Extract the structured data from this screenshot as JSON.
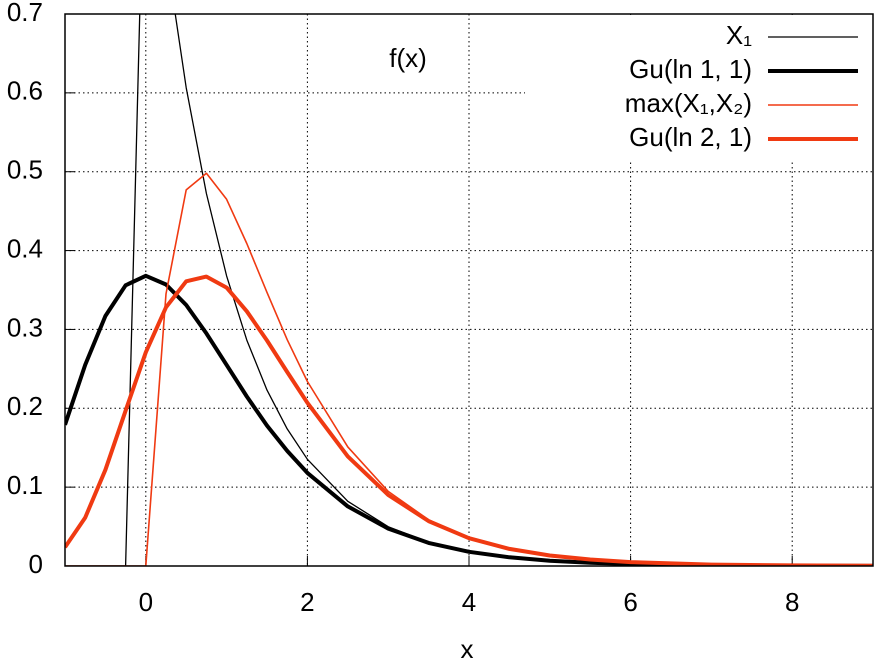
{
  "chart_data": {
    "type": "line",
    "ylabel": "f(x)",
    "xlabel": "x",
    "x": [
      -1,
      -0.75,
      -0.5,
      -0.25,
      0,
      0.25,
      0.5,
      0.75,
      1,
      1.25,
      1.5,
      1.75,
      2,
      2.5,
      3,
      3.5,
      4,
      4.5,
      5,
      5.5,
      6,
      7,
      8,
      9
    ],
    "series": [
      {
        "name": "X₁",
        "color": "#000000",
        "line_width": 1.3,
        "values": [
          0,
          0,
          0,
          0,
          1,
          0.7788,
          0.6065,
          0.4724,
          0.3679,
          0.2865,
          0.2231,
          0.1738,
          0.1353,
          0.0821,
          0.0498,
          0.0302,
          0.0183,
          0.0111,
          0.0067,
          0.0041,
          0.0025,
          0.0009,
          0.0003,
          0.0001
        ]
      },
      {
        "name": "Gu(ln 1, 1)",
        "color": "#000000",
        "line_width": 4,
        "values": [
          0.179,
          0.255,
          0.317,
          0.356,
          0.368,
          0.357,
          0.331,
          0.295,
          0.255,
          0.215,
          0.178,
          0.146,
          0.118,
          0.0756,
          0.0474,
          0.0293,
          0.018,
          0.011,
          0.0067,
          0.0041,
          0.0025,
          0.0009,
          0.0003,
          0.0001
        ]
      },
      {
        "name": "max(X₁,X₂)",
        "color": "#f03a12",
        "line_width": 1.6,
        "values": [
          0,
          0,
          0,
          0,
          0,
          0.345,
          0.477,
          0.498,
          0.465,
          0.409,
          0.347,
          0.287,
          0.234,
          0.151,
          0.0946,
          0.0586,
          0.0359,
          0.022,
          0.0134,
          0.0082,
          0.005,
          0.0018,
          0.0007,
          0.0002
        ]
      },
      {
        "name": "Gu(ln 2, 1)",
        "color": "#f03a12",
        "line_width": 4,
        "values": [
          0.0237,
          0.0614,
          0.122,
          0.197,
          0.271,
          0.328,
          0.361,
          0.367,
          0.353,
          0.323,
          0.286,
          0.246,
          0.207,
          0.139,
          0.0901,
          0.0569,
          0.0353,
          0.0217,
          0.0133,
          0.0082,
          0.005,
          0.0018,
          0.0007,
          0.0002
        ]
      }
    ],
    "xlim": [
      -1,
      9
    ],
    "xticks": [
      0,
      2,
      4,
      6,
      8
    ],
    "ylim": [
      0,
      0.7
    ],
    "yticks": [
      0,
      0.1,
      0.2,
      0.3,
      0.4,
      0.5,
      0.6,
      0.7
    ],
    "grid": true,
    "legend": "top-right"
  }
}
